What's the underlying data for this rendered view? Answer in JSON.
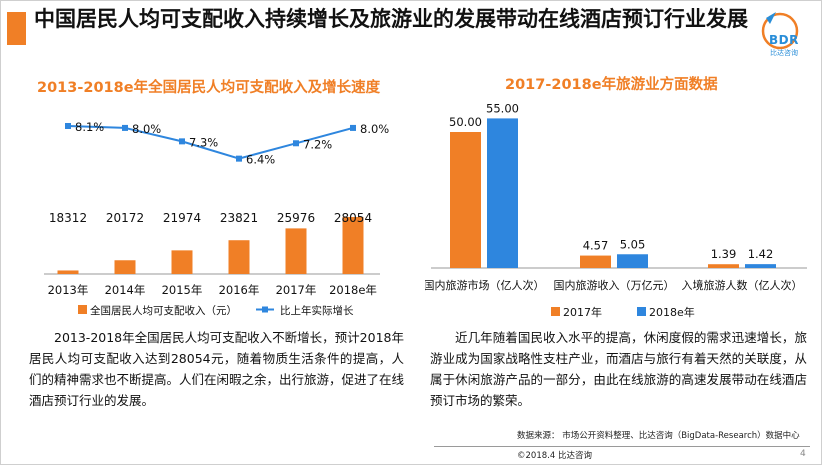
{
  "page": {
    "title": "中国居民人均可支配收入持续增长及旅游业的发展带动在线酒店预订行业发展",
    "logo_text": "BDR",
    "logo_subtext": "比达咨询",
    "left_desc": "2013-2018年全国居民人均可支配收入不断增长，预计2018年居民人均可支配收入达到28054元，随着物质生活条件的提高，人们的精神需求也不断提高。人们在闲暇之余，出行旅游，促进了在线酒店预订行业的发展。",
    "right_desc": "近几年随着国民收入水平的提高，休闲度假的需求迅速增长，旅游业成为国家战略性支柱产业，而酒店与旅行有着天然的关联度，从属于休闲旅游产品的一部分，由此在线旅游的高速发展带动在线酒店预订市场的繁荣。",
    "source": "数据来源：  市场公开资料整理、比达咨询（BigData-Research）数据中心",
    "copyright": "©2018.4 比达咨询",
    "page_number": "4",
    "colors": {
      "accent_orange": "#f07f26",
      "series_blue": "#2e86de",
      "logo_blue": "#2a8ed8"
    }
  },
  "chart_data": [
    {
      "type": "bar+line",
      "title": "2013-2018e年全国居民人均可支配收入及增长速度",
      "categories": [
        "2013年",
        "2014年",
        "2015年",
        "2016年",
        "2017年",
        "2018e年"
      ],
      "series": [
        {
          "name": "全国居民人均可支配收入（元）",
          "type": "bar",
          "values": [
            18312,
            20172,
            21974,
            23821,
            25976,
            28054
          ],
          "labels": [
            "18312",
            "20172",
            "21974",
            "23821",
            "25976",
            "28054"
          ],
          "color": "#f07f26"
        },
        {
          "name": "比上年实际增长",
          "type": "line",
          "values": [
            8.1,
            8.0,
            7.3,
            6.4,
            7.2,
            8.0
          ],
          "labels": [
            "8.1%",
            "8.0%",
            "7.3%",
            "6.4%",
            "7.2%",
            "8.0%"
          ],
          "color": "#2e86de"
        }
      ],
      "legend_position": "bottom",
      "grid": false
    },
    {
      "type": "bar",
      "title": "2017-2018e年旅游业方面数据",
      "categories": [
        "国内旅游市场（亿人次）",
        "国内旅游收入（万亿元）",
        "入境旅游人数（亿人次）"
      ],
      "series": [
        {
          "name": "2017年",
          "values": [
            50.0,
            4.57,
            1.39
          ],
          "labels": [
            "50.00",
            "4.57",
            "1.39"
          ],
          "color": "#f07f26"
        },
        {
          "name": "2018e年",
          "values": [
            55.0,
            5.05,
            1.42
          ],
          "labels": [
            "55.00",
            "5.05",
            "1.42"
          ],
          "color": "#2e86de"
        }
      ],
      "legend_position": "bottom",
      "grid": false
    }
  ]
}
